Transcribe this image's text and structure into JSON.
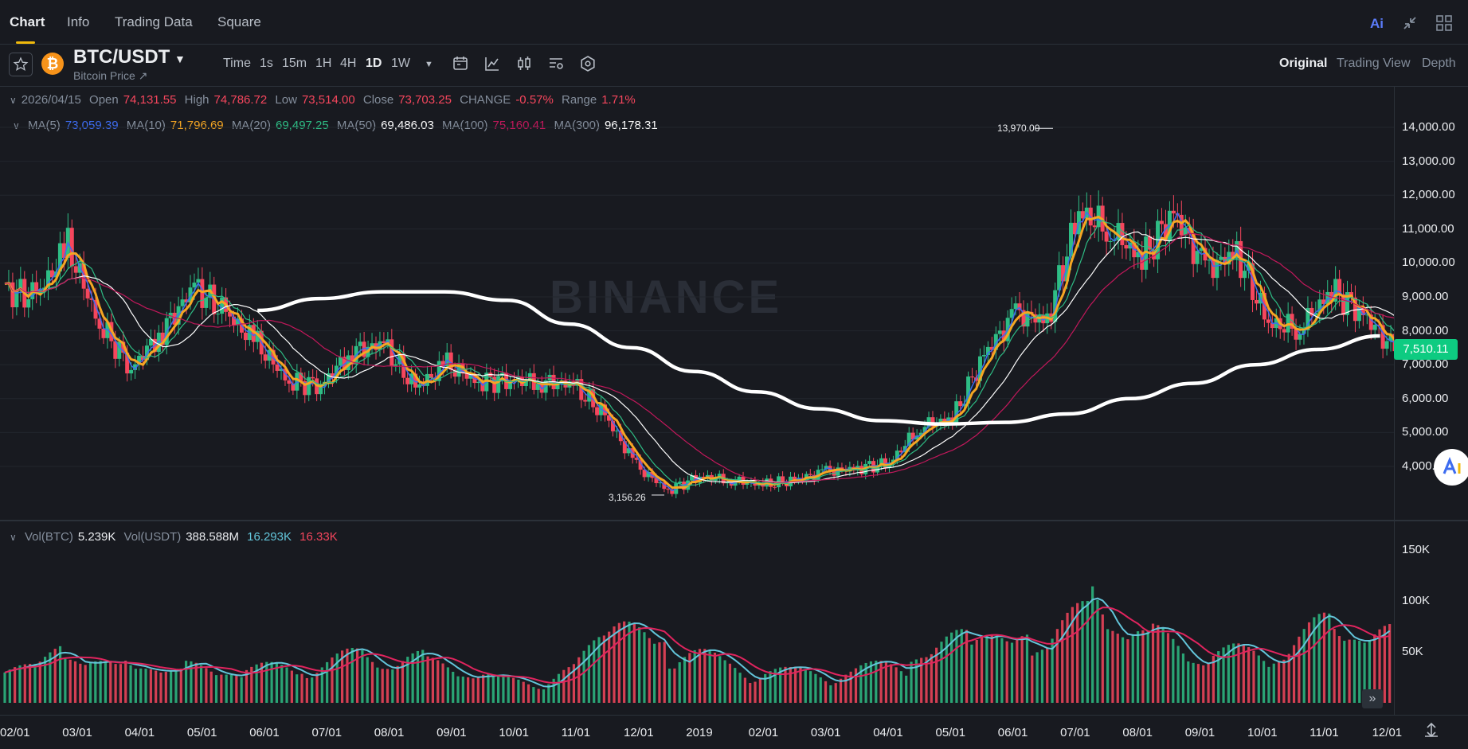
{
  "tabs": [
    "Chart",
    "Info",
    "Trading Data",
    "Square"
  ],
  "top_icons": {
    "ai": "Ai",
    "collapse": "collapse-icon",
    "grid": "grid-icon"
  },
  "symbol": {
    "pair": "BTC/USDT",
    "subtitle": "Bitcoin Price ↗",
    "logo": "₿"
  },
  "intervals": [
    "Time",
    "1s",
    "15m",
    "1H",
    "4H",
    "1D",
    "1W"
  ],
  "active_interval": "1D",
  "views": [
    "Original",
    "Trading View",
    "Depth"
  ],
  "ohlc": {
    "date": "2026/04/15",
    "open_label": "Open",
    "open": "74,131.55",
    "high_label": "High",
    "high": "74,786.72",
    "low_label": "Low",
    "low": "73,514.00",
    "close_label": "Close",
    "close": "73,703.25",
    "change_label": "CHANGE",
    "change": "-0.57%",
    "range_label": "Range",
    "range": "1.71%"
  },
  "ma": [
    {
      "label": "MA(5)",
      "value": "73,059.39",
      "color": "#3d6cf0"
    },
    {
      "label": "MA(10)",
      "value": "71,796.69",
      "color": "#f5a623"
    },
    {
      "label": "MA(20)",
      "value": "69,497.25",
      "color": "#2ebd85"
    },
    {
      "label": "MA(50)",
      "value": "69,486.03",
      "color": "#ffffff"
    },
    {
      "label": "MA(100)",
      "value": "75,160.41",
      "color": "#c2185b"
    },
    {
      "label": "MA(300)",
      "value": "96,178.31",
      "color": "#ffffff"
    }
  ],
  "vol": {
    "btc_label": "Vol(BTC)",
    "btc": "5.239K",
    "usdt_label": "Vol(USDT)",
    "usdt": "388.588M",
    "ma1": "16.293K",
    "ma2": "16.33K"
  },
  "watermark": "BINANCE",
  "current_price": "7,510.11",
  "expand_icon": "»",
  "colors": {
    "up": "#2ebd85",
    "down": "#f6465d",
    "accent": "#f0b90b",
    "bg": "#181a20"
  },
  "chart_data": {
    "type": "line",
    "title": "BTC/USDT",
    "y_ticks": [
      "14,000.00",
      "13,000.00",
      "12,000.00",
      "11,000.00",
      "10,000.00",
      "9,000.00",
      "8,000.00",
      "7,000.00",
      "6,000.00",
      "5,000.00",
      "4,000.00"
    ],
    "vol_ticks": [
      "150K",
      "100K",
      "50K"
    ],
    "x_ticks": [
      "02/01",
      "03/01",
      "04/01",
      "05/01",
      "06/01",
      "07/01",
      "08/01",
      "09/01",
      "10/01",
      "11/01",
      "12/01",
      "2019",
      "02/01",
      "03/01",
      "04/01",
      "05/01",
      "06/01",
      "07/01",
      "08/01",
      "09/01",
      "10/01",
      "11/01",
      "12/01"
    ],
    "ylim": [
      2800,
      14700
    ],
    "annotations": {
      "high": "13,970.00",
      "low": "3,156.26"
    },
    "close_series": [
      {
        "x": "02/01",
        "y": 9200
      },
      {
        "x": "02/15",
        "y": 9000
      },
      {
        "x": "03/01",
        "y": 10500
      },
      {
        "x": "03/15",
        "y": 8200
      },
      {
        "x": "04/01",
        "y": 6900
      },
      {
        "x": "04/15",
        "y": 8000
      },
      {
        "x": "05/01",
        "y": 9300
      },
      {
        "x": "05/15",
        "y": 8500
      },
      {
        "x": "06/01",
        "y": 7600
      },
      {
        "x": "06/15",
        "y": 6500
      },
      {
        "x": "07/01",
        "y": 6400
      },
      {
        "x": "07/15",
        "y": 7400
      },
      {
        "x": "08/01",
        "y": 7600
      },
      {
        "x": "08/15",
        "y": 6300
      },
      {
        "x": "09/01",
        "y": 7000
      },
      {
        "x": "09/15",
        "y": 6500
      },
      {
        "x": "10/01",
        "y": 6550
      },
      {
        "x": "10/15",
        "y": 6500
      },
      {
        "x": "11/01",
        "y": 6400
      },
      {
        "x": "11/15",
        "y": 5500
      },
      {
        "x": "12/01",
        "y": 4000
      },
      {
        "x": "12/15",
        "y": 3300
      },
      {
        "x": "2019",
        "y": 3700
      },
      {
        "x": "01/15",
        "y": 3600
      },
      {
        "x": "02/01",
        "y": 3450
      },
      {
        "x": "02/15",
        "y": 3600
      },
      {
        "x": "03/01",
        "y": 3850
      },
      {
        "x": "03/15",
        "y": 3950
      },
      {
        "x": "04/01",
        "y": 4100
      },
      {
        "x": "04/15",
        "y": 5200
      },
      {
        "x": "05/01",
        "y": 5400
      },
      {
        "x": "05/15",
        "y": 7300
      },
      {
        "x": "06/01",
        "y": 8500
      },
      {
        "x": "06/15",
        "y": 8300
      },
      {
        "x": "07/01",
        "y": 11500
      },
      {
        "x": "07/15",
        "y": 11000
      },
      {
        "x": "08/01",
        "y": 10100
      },
      {
        "x": "08/15",
        "y": 11500
      },
      {
        "x": "09/01",
        "y": 9800
      },
      {
        "x": "09/15",
        "y": 10300
      },
      {
        "x": "10/01",
        "y": 8200
      },
      {
        "x": "10/15",
        "y": 8100
      },
      {
        "x": "11/01",
        "y": 9200
      },
      {
        "x": "11/15",
        "y": 8500
      },
      {
        "x": "12/01",
        "y": 7400
      }
    ],
    "ma300_series": [
      {
        "x": "06/01",
        "y": 8600
      },
      {
        "x": "07/01",
        "y": 8950
      },
      {
        "x": "08/01",
        "y": 9150
      },
      {
        "x": "09/01",
        "y": 9150
      },
      {
        "x": "10/01",
        "y": 8900
      },
      {
        "x": "11/01",
        "y": 8200
      },
      {
        "x": "12/01",
        "y": 7500
      },
      {
        "x": "2019",
        "y": 6800
      },
      {
        "x": "02/01",
        "y": 6200
      },
      {
        "x": "03/01",
        "y": 5700
      },
      {
        "x": "04/01",
        "y": 5350
      },
      {
        "x": "05/01",
        "y": 5250
      },
      {
        "x": "06/01",
        "y": 5300
      },
      {
        "x": "07/01",
        "y": 5550
      },
      {
        "x": "08/01",
        "y": 6000
      },
      {
        "x": "09/01",
        "y": 6450
      },
      {
        "x": "10/01",
        "y": 7000
      },
      {
        "x": "11/01",
        "y": 7450
      },
      {
        "x": "12/01",
        "y": 7850
      }
    ],
    "volume_series": [
      {
        "x": "02/01",
        "y": 35000
      },
      {
        "x": "03/01",
        "y": 45000
      },
      {
        "x": "04/01",
        "y": 38000
      },
      {
        "x": "05/01",
        "y": 32000
      },
      {
        "x": "06/01",
        "y": 30000
      },
      {
        "x": "07/01",
        "y": 33000
      },
      {
        "x": "08/01",
        "y": 45000
      },
      {
        "x": "09/01",
        "y": 40000
      },
      {
        "x": "10/01",
        "y": 27000
      },
      {
        "x": "11/01",
        "y": 15000
      },
      {
        "x": "11/15",
        "y": 70000
      },
      {
        "x": "12/01",
        "y": 55000
      },
      {
        "x": "2019",
        "y": 35000
      },
      {
        "x": "02/01",
        "y": 28000
      },
      {
        "x": "03/01",
        "y": 30000
      },
      {
        "x": "04/01",
        "y": 38000
      },
      {
        "x": "05/01",
        "y": 65000
      },
      {
        "x": "06/01",
        "y": 55000
      },
      {
        "x": "07/01",
        "y": 100000
      },
      {
        "x": "08/01",
        "y": 60000
      },
      {
        "x": "09/01",
        "y": 45000
      },
      {
        "x": "10/01",
        "y": 45000
      },
      {
        "x": "11/01",
        "y": 75000
      },
      {
        "x": "12/01",
        "y": 60000
      }
    ]
  }
}
